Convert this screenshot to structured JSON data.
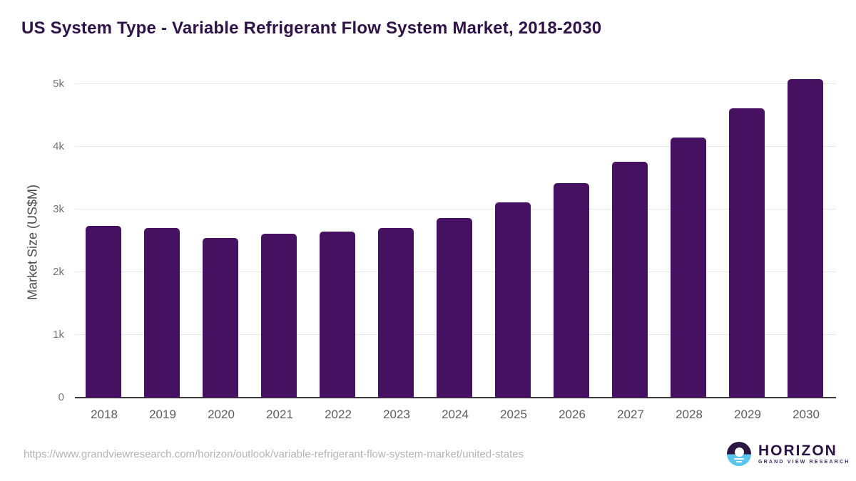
{
  "header": {
    "title": "US System Type - Variable Refrigerant Flow System Market, 2018-2030"
  },
  "chart_data": {
    "type": "bar",
    "title": "US System Type - Variable Refrigerant Flow System Market, 2018-2030",
    "xlabel": "",
    "ylabel": "Market Size (US$M)",
    "categories": [
      "2018",
      "2019",
      "2020",
      "2021",
      "2022",
      "2023",
      "2024",
      "2025",
      "2026",
      "2027",
      "2028",
      "2029",
      "2030"
    ],
    "values": [
      2740,
      2710,
      2550,
      2610,
      2650,
      2700,
      2860,
      3110,
      3420,
      3760,
      4150,
      4610,
      5080
    ],
    "ylim": [
      0,
      5200
    ],
    "yticks": [
      {
        "value": 0,
        "label": "0"
      },
      {
        "value": 1000,
        "label": "1k"
      },
      {
        "value": 2000,
        "label": "2k"
      },
      {
        "value": 3000,
        "label": "3k"
      },
      {
        "value": 4000,
        "label": "4k"
      },
      {
        "value": 5000,
        "label": "5k"
      }
    ],
    "grid": true,
    "legend": false,
    "bar_color": "#461161",
    "gridline_color": "#e8e8e8",
    "axis_color": "#3c3c3c"
  },
  "footer": {
    "source_url": "https://www.grandviewresearch.com/horizon/outlook/variable-refrigerant-flow-system-market/united-states",
    "logo": {
      "name": "HORIZON",
      "subtitle": "GRAND VIEW RESEARCH",
      "purple": "#2d1544",
      "blue": "#5ac6f0"
    }
  }
}
